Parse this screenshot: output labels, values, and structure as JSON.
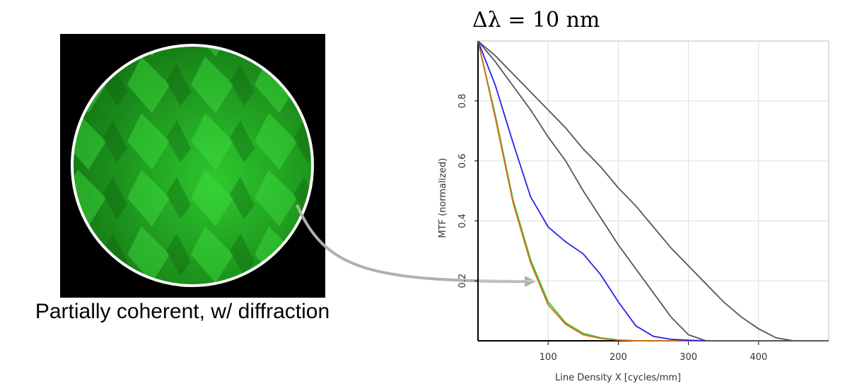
{
  "image": {
    "caption": "Partially coherent, w/ diffraction"
  },
  "chart_data": {
    "type": "line",
    "title": "Δλ = 10 nm",
    "x_label": "Line Density X [cycles/mm]",
    "y_label": "MTF (normalized)",
    "x": [
      0,
      25,
      50,
      75,
      100,
      125,
      150,
      175,
      200,
      225,
      250,
      275,
      300,
      325,
      350,
      375,
      400,
      425,
      450,
      475,
      500
    ],
    "xlim": [
      0,
      500
    ],
    "ylim": [
      0,
      1
    ],
    "xticks": [
      100,
      200,
      300,
      400
    ],
    "yticks": [
      0.2,
      0.4,
      0.6,
      0.8
    ],
    "grid": true,
    "series": [
      {
        "color": "#33cc33",
        "values": [
          1,
          0.75,
          0.47,
          0.27,
          0.13,
          0.06,
          0.025,
          0.01,
          0.003,
          0,
          0,
          0,
          0,
          0,
          0,
          0,
          0,
          0,
          0,
          0,
          0
        ]
      },
      {
        "color": "#e0661a",
        "values": [
          1,
          0.74,
          0.46,
          0.26,
          0.12,
          0.055,
          0.02,
          0.008,
          0.002,
          0,
          0,
          0,
          0,
          0,
          0,
          0,
          0,
          0,
          0,
          0,
          0
        ]
      },
      {
        "color": "#2222ee",
        "values": [
          1,
          0.85,
          0.66,
          0.48,
          0.38,
          0.33,
          0.29,
          0.22,
          0.13,
          0.05,
          0.015,
          0.005,
          0.002,
          0,
          0,
          0,
          0,
          0,
          0,
          0,
          0
        ]
      },
      {
        "color": "#555555",
        "values": [
          1,
          0.93,
          0.85,
          0.77,
          0.68,
          0.6,
          0.5,
          0.41,
          0.32,
          0.24,
          0.16,
          0.08,
          0.02,
          0,
          0,
          0,
          0,
          0,
          0,
          0,
          0
        ]
      },
      {
        "color": "#555555",
        "values": [
          1,
          0.95,
          0.89,
          0.83,
          0.77,
          0.71,
          0.64,
          0.58,
          0.51,
          0.45,
          0.38,
          0.31,
          0.25,
          0.19,
          0.13,
          0.08,
          0.04,
          0.01,
          0,
          0,
          0
        ]
      }
    ]
  }
}
